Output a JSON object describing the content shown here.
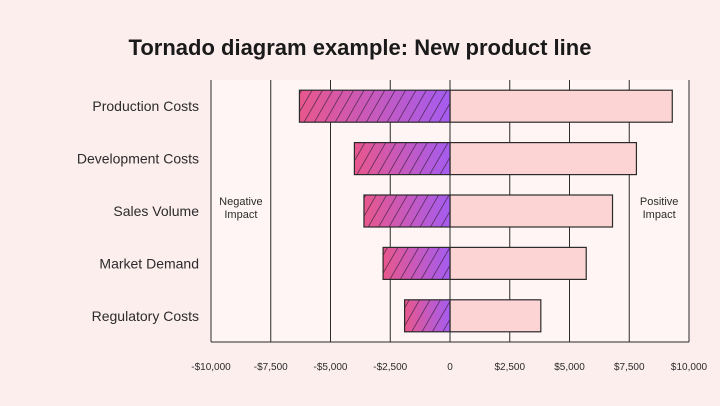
{
  "chart_data": {
    "type": "bar",
    "orientation": "horizontal",
    "title": "Tornado diagram example: New product line",
    "categories": [
      "Production Costs",
      "Development Costs",
      "Sales Volume",
      "Market Demand",
      "Regulatory Costs"
    ],
    "series": [
      {
        "name": "Negative Impact",
        "values": [
          -6300,
          -4000,
          -3600,
          -2800,
          -1900
        ]
      },
      {
        "name": "Positive Impact",
        "values": [
          9300,
          7800,
          6800,
          5700,
          3800
        ]
      }
    ],
    "xlim": [
      -10000,
      10000
    ],
    "x_ticks": [
      -10000,
      -7500,
      -5000,
      -2500,
      0,
      2500,
      5000,
      7500,
      10000
    ],
    "x_tick_labels": [
      "-$10,000",
      "-$7,500",
      "-$5,000",
      "-$2,500",
      "0",
      "$2,500",
      "$5,000",
      "$7,500",
      "$10,000"
    ],
    "grid": true,
    "annotations": {
      "negative": [
        "Negative",
        "Impact"
      ],
      "positive": [
        "Positive",
        "Impact"
      ]
    },
    "colors": {
      "background": "#fdeeee",
      "plot_background": "#fff5f5",
      "negative_gradient_start": "#e8578c",
      "negative_gradient_end": "#a55cf0",
      "hatch": "#3a2040",
      "positive_fill": "#fdd4d4",
      "bar_stroke": "#2b2b2b",
      "grid": "#2b2b2b",
      "text": "#2b2b2b"
    }
  }
}
